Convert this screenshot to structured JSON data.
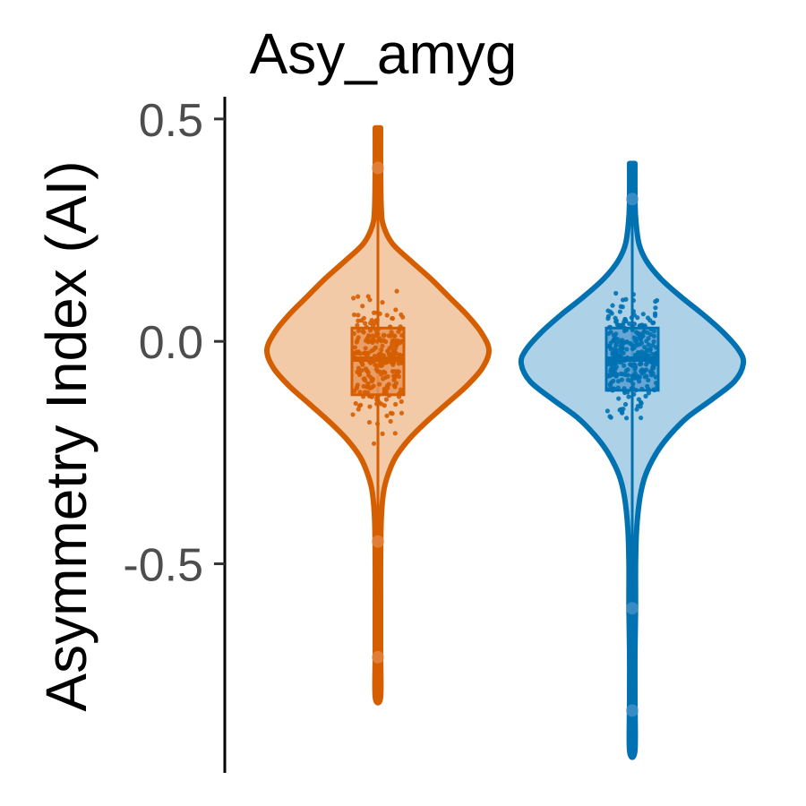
{
  "chart_data": {
    "type": "violin",
    "title": "Asy_amyg",
    "xlabel": "",
    "ylabel": "Asymmetry Index (AI)",
    "ylim": [
      -0.97,
      0.55
    ],
    "yticks": [
      {
        "value": 0.5,
        "label": "0.5"
      },
      {
        "value": 0.0,
        "label": "0.0"
      },
      {
        "value": -0.5,
        "label": "-0.5"
      }
    ],
    "grid": false,
    "legend": "none",
    "groups": [
      {
        "color": "#d55e00",
        "fill": "#f3caa8",
        "box_fill": "#e8955a",
        "min": -0.8,
        "max": 0.48,
        "q1": -0.12,
        "median": -0.04,
        "q3": 0.03,
        "outliers": [
          0.39,
          -0.45,
          -0.71
        ],
        "density": [
          [
            0.48,
            0.0
          ],
          [
            0.4,
            0.02
          ],
          [
            0.3,
            0.03
          ],
          [
            0.26,
            0.05
          ],
          [
            0.22,
            0.13
          ],
          [
            0.18,
            0.3
          ],
          [
            0.14,
            0.48
          ],
          [
            0.1,
            0.64
          ],
          [
            0.06,
            0.8
          ],
          [
            0.02,
            0.93
          ],
          [
            -0.02,
            1.0
          ],
          [
            -0.06,
            0.94
          ],
          [
            -0.1,
            0.8
          ],
          [
            -0.14,
            0.62
          ],
          [
            -0.18,
            0.44
          ],
          [
            -0.22,
            0.28
          ],
          [
            -0.26,
            0.16
          ],
          [
            -0.3,
            0.09
          ],
          [
            -0.34,
            0.05
          ],
          [
            -0.4,
            0.03
          ],
          [
            -0.5,
            0.02
          ],
          [
            -0.6,
            0.02
          ],
          [
            -0.7,
            0.02
          ],
          [
            -0.8,
            0.0
          ]
        ],
        "n_points": 260
      },
      {
        "color": "#0072b2",
        "fill": "#add1e7",
        "box_fill": "#5b9fd0",
        "min": -0.92,
        "max": 0.4,
        "q1": -0.11,
        "median": -0.04,
        "q3": 0.03,
        "outliers": [
          0.32,
          -0.6,
          -0.83
        ],
        "density": [
          [
            0.4,
            0.0
          ],
          [
            0.34,
            0.02
          ],
          [
            0.28,
            0.03
          ],
          [
            0.22,
            0.06
          ],
          [
            0.18,
            0.13
          ],
          [
            0.14,
            0.26
          ],
          [
            0.1,
            0.44
          ],
          [
            0.06,
            0.64
          ],
          [
            0.02,
            0.82
          ],
          [
            -0.02,
            0.96
          ],
          [
            -0.05,
            1.0
          ],
          [
            -0.09,
            0.92
          ],
          [
            -0.13,
            0.72
          ],
          [
            -0.17,
            0.5
          ],
          [
            -0.21,
            0.34
          ],
          [
            -0.25,
            0.22
          ],
          [
            -0.3,
            0.12
          ],
          [
            -0.35,
            0.07
          ],
          [
            -0.42,
            0.04
          ],
          [
            -0.5,
            0.03
          ],
          [
            -0.6,
            0.03
          ],
          [
            -0.7,
            0.02
          ],
          [
            -0.8,
            0.02
          ],
          [
            -0.92,
            0.0
          ]
        ],
        "n_points": 300
      }
    ]
  }
}
